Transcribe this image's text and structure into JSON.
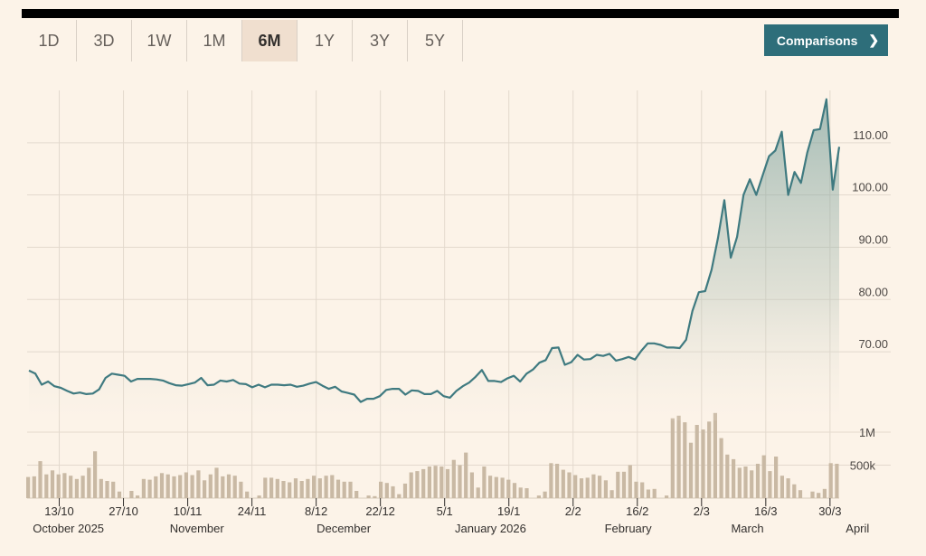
{
  "tabs": [
    {
      "label": "1D",
      "active": false
    },
    {
      "label": "3D",
      "active": false
    },
    {
      "label": "1W",
      "active": false
    },
    {
      "label": "1M",
      "active": false
    },
    {
      "label": "6M",
      "active": true
    },
    {
      "label": "1Y",
      "active": false
    },
    {
      "label": "3Y",
      "active": false
    },
    {
      "label": "5Y",
      "active": false
    }
  ],
  "comparisons": {
    "label": "Comparisons",
    "icon": "chevron-right-icon"
  },
  "colors": {
    "line": "#3f7a80",
    "volume": "#c9b9a4",
    "grid": "#e3d9cd",
    "button": "#2e6e7a",
    "background": "#fcf3e8"
  },
  "chart_data": {
    "type": "line",
    "x_start": "2025-10-06",
    "x_end": "2026-04-01",
    "price": {
      "ylim": [
        56,
        120
      ],
      "y_ticks": [
        70,
        80,
        90,
        100,
        110
      ],
      "y_tick_labels": [
        "70.00",
        "80.00",
        "90.00",
        "100.00",
        "110.00"
      ],
      "values": [
        66.4,
        65.8,
        63.7,
        64.3,
        63.4,
        63.1,
        62.5,
        62.0,
        62.2,
        61.9,
        62.0,
        62.8,
        65.0,
        65.8,
        65.6,
        65.4,
        64.3,
        64.8,
        64.8,
        64.8,
        64.7,
        64.5,
        64.0,
        63.6,
        63.5,
        63.8,
        64.1,
        65.0,
        63.6,
        63.7,
        64.5,
        64.3,
        64.6,
        63.9,
        63.8,
        63.2,
        63.7,
        63.2,
        63.7,
        63.7,
        63.6,
        63.7,
        63.3,
        63.5,
        63.9,
        64.2,
        63.5,
        62.9,
        63.3,
        62.4,
        62.1,
        61.8,
        60.4,
        61.0,
        61.0,
        61.5,
        62.7,
        62.9,
        62.9,
        61.8,
        62.6,
        62.5,
        61.9,
        61.9,
        62.5,
        61.5,
        61.2,
        62.5,
        63.4,
        64.1,
        65.2,
        66.5,
        64.4,
        64.4,
        64.2,
        64.9,
        65.4,
        64.3,
        65.8,
        66.6,
        67.9,
        68.4,
        70.7,
        70.8,
        67.5,
        68.0,
        69.4,
        68.5,
        68.6,
        69.4,
        69.2,
        69.6,
        68.3,
        68.6,
        69.0,
        68.5,
        70.2,
        71.6,
        71.6,
        71.3,
        70.8,
        70.8,
        70.7,
        72.3,
        77.8,
        81.4,
        81.6,
        85.7,
        91.8,
        99.0,
        88.0,
        92.0,
        100.0,
        103.0,
        100.0,
        103.7,
        107.4,
        108.5,
        112.1,
        100.0,
        104.4,
        102.3,
        108.1,
        112.4,
        112.6,
        118.3,
        101.0,
        109.2
      ],
      "fill": "gradient under line"
    },
    "volume": {
      "y_ticks": [
        500000,
        1000000
      ],
      "y_tick_labels": [
        "500k",
        "1M"
      ],
      "values": [
        320000,
        330000,
        560000,
        360000,
        420000,
        360000,
        380000,
        340000,
        290000,
        340000,
        460000,
        710000,
        290000,
        260000,
        250000,
        100000,
        110000,
        40000,
        290000,
        280000,
        330000,
        380000,
        360000,
        330000,
        350000,
        390000,
        350000,
        420000,
        270000,
        360000,
        460000,
        330000,
        360000,
        340000,
        250000,
        100000,
        40000,
        310000,
        310000,
        290000,
        260000,
        240000,
        300000,
        260000,
        290000,
        340000,
        300000,
        340000,
        350000,
        280000,
        250000,
        250000,
        110000,
        40000,
        30000,
        250000,
        230000,
        180000,
        60000,
        220000,
        390000,
        410000,
        440000,
        480000,
        490000,
        480000,
        440000,
        580000,
        500000,
        690000,
        390000,
        160000,
        480000,
        340000,
        320000,
        310000,
        280000,
        230000,
        160000,
        150000,
        40000,
        100000,
        530000,
        520000,
        430000,
        390000,
        350000,
        300000,
        310000,
        360000,
        340000,
        270000,
        120000,
        400000,
        400000,
        500000,
        250000,
        240000,
        130000,
        140000,
        40000,
        1210000,
        1250000,
        1150000,
        840000,
        1110000,
        1040000,
        1160000,
        1290000,
        910000,
        660000,
        590000,
        460000,
        480000,
        420000,
        520000,
        650000,
        410000,
        630000,
        340000,
        300000,
        210000,
        120000,
        100000,
        80000,
        140000,
        530000,
        520000
      ],
      "gaps_after": [
        15,
        35,
        52,
        79,
        99,
        122
      ]
    },
    "x_tick_labels": [
      "13/10",
      "27/10",
      "10/11",
      "24/11",
      "8/12",
      "22/12",
      "5/1",
      "19/1",
      "2/2",
      "16/2",
      "2/3",
      "16/3",
      "30/3"
    ],
    "x_tick_dates": [
      "2025-10-13",
      "2025-10-27",
      "2025-11-10",
      "2025-11-24",
      "2025-12-08",
      "2025-12-22",
      "2026-01-05",
      "2026-01-19",
      "2026-02-02",
      "2026-02-16",
      "2026-03-02",
      "2026-03-16",
      "2026-03-30"
    ],
    "month_labels": [
      "October 2025",
      "November",
      "December",
      "January 2026",
      "February",
      "March",
      "April"
    ],
    "month_dates": [
      "2025-10-15",
      "2025-11-12",
      "2025-12-14",
      "2026-01-15",
      "2026-02-14",
      "2026-03-12",
      "2026-04-05"
    ],
    "grid": true
  }
}
